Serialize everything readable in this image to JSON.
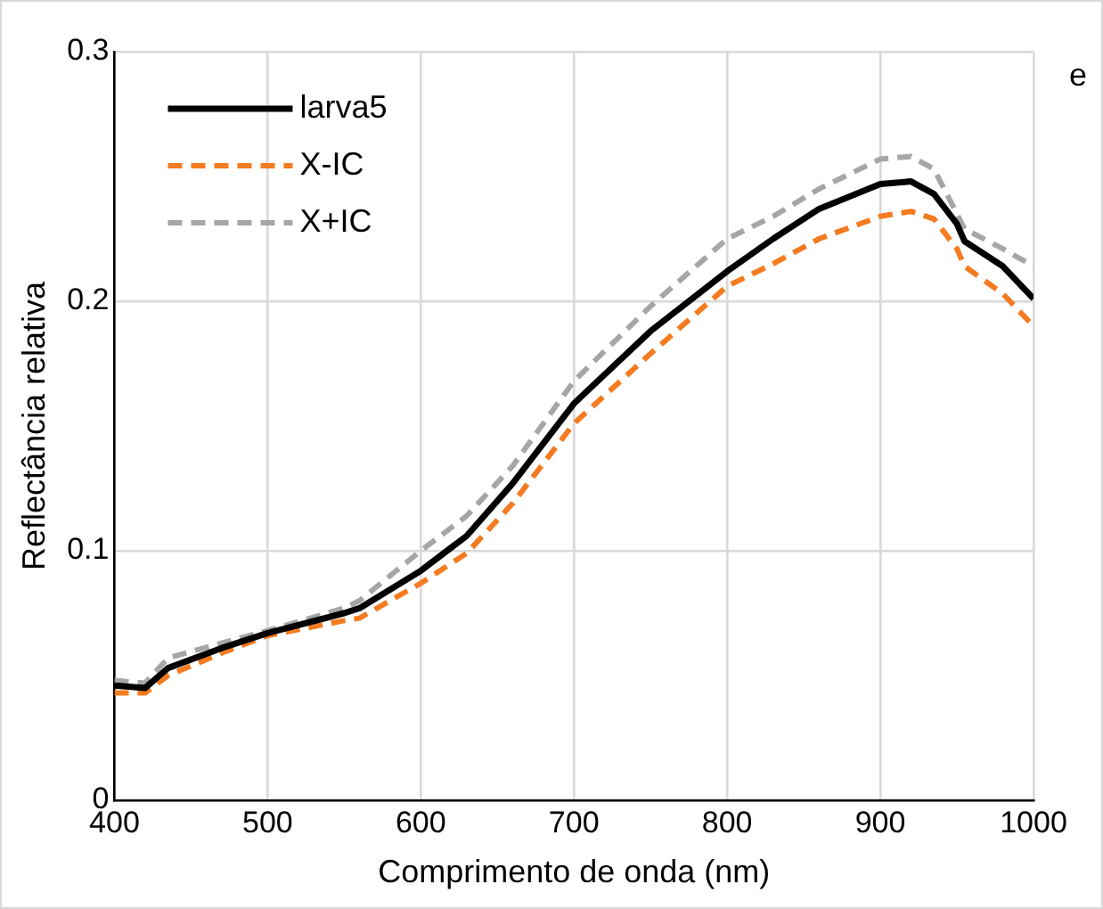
{
  "chart_data": {
    "type": "line",
    "xlabel": "Comprimento de onda (nm)",
    "ylabel": "Reflectância relativa",
    "annotations": [
      "e"
    ],
    "x": [
      400,
      420,
      435,
      470,
      500,
      550,
      560,
      600,
      630,
      660,
      700,
      750,
      800,
      830,
      860,
      900,
      920,
      935,
      950,
      955,
      980,
      1000
    ],
    "series": [
      {
        "name": "larva5",
        "color": "#000000",
        "line_style": "solid",
        "values": [
          0.046,
          0.045,
          0.053,
          0.061,
          0.067,
          0.075,
          0.077,
          0.092,
          0.106,
          0.127,
          0.159,
          0.188,
          0.212,
          0.225,
          0.237,
          0.247,
          0.248,
          0.243,
          0.231,
          0.224,
          0.214,
          0.201
        ]
      },
      {
        "name": "X-IC",
        "color": "#f47b20",
        "line_style": "dashed",
        "values": [
          0.043,
          0.043,
          0.05,
          0.059,
          0.066,
          0.072,
          0.073,
          0.087,
          0.099,
          0.119,
          0.151,
          0.179,
          0.206,
          0.215,
          0.225,
          0.234,
          0.236,
          0.233,
          0.221,
          0.214,
          0.203,
          0.19
        ]
      },
      {
        "name": "X+IC",
        "color": "#a6a6a6",
        "line_style": "dashed",
        "values": [
          0.048,
          0.047,
          0.057,
          0.063,
          0.068,
          0.077,
          0.08,
          0.1,
          0.114,
          0.134,
          0.168,
          0.198,
          0.225,
          0.234,
          0.245,
          0.257,
          0.258,
          0.253,
          0.235,
          0.229,
          0.221,
          0.214
        ]
      }
    ],
    "xlim": [
      400,
      1000
    ],
    "xticks": [
      400,
      500,
      600,
      700,
      800,
      900,
      1000
    ],
    "ylim": [
      0,
      0.3
    ],
    "yticks": [
      0,
      0.1,
      0.2,
      0.3
    ],
    "grid": true,
    "legend": "top left",
    "marker": "none"
  }
}
